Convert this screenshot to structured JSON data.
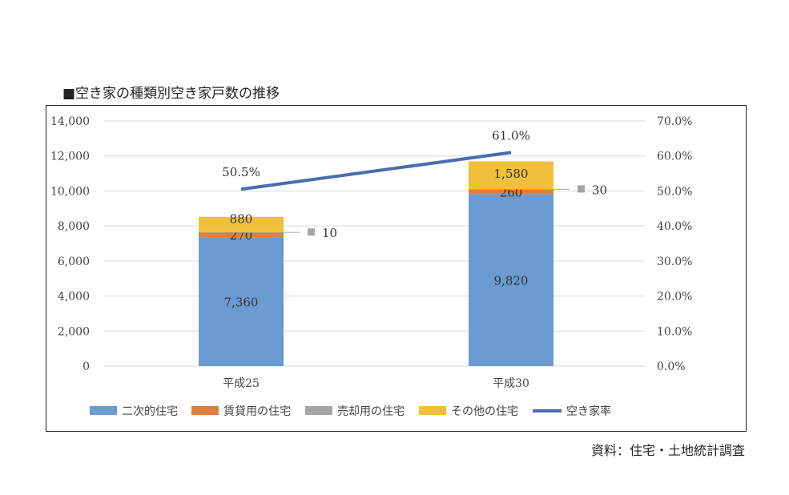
{
  "title": "■空き家の種類別空き家戸数の推移",
  "source": "資料：住宅・土地統計調査",
  "chart_data": {
    "type": "bar",
    "stacked": true,
    "categories": [
      "平成25",
      "平成30"
    ],
    "series": [
      {
        "name": "二次的住宅",
        "values": [
          7360,
          9820
        ],
        "labels": [
          "7,360",
          "9,820"
        ],
        "color": "#6a9bd1"
      },
      {
        "name": "賃貸用の住宅",
        "values": [
          270,
          260
        ],
        "labels": [
          "270",
          "260"
        ],
        "color": "#de7f3e"
      },
      {
        "name": "売却用の住宅",
        "values": [
          10,
          30
        ],
        "labels": [
          "10",
          "30"
        ],
        "color": "#a5a5a5"
      },
      {
        "name": "その他の住宅",
        "values": [
          880,
          1580
        ],
        "labels": [
          "880",
          "1,580"
        ],
        "color": "#f2bf3c"
      }
    ],
    "line": {
      "name": "空き家率",
      "values": [
        0.505,
        0.61
      ],
      "labels": [
        "50.5%",
        "61.0%"
      ],
      "color": "#4a6cb0",
      "axis": "right"
    },
    "ylim": [
      0,
      14000
    ],
    "yticks": [
      "0",
      "2,000",
      "4,000",
      "6,000",
      "8,000",
      "10,000",
      "12,000",
      "14,000"
    ],
    "y2lim": [
      0,
      0.7
    ],
    "y2ticks": [
      "0.0%",
      "10.0%",
      "20.0%",
      "30.0%",
      "40.0%",
      "50.0%",
      "60.0%",
      "70.0%"
    ],
    "grid": true,
    "legend": "bottom"
  }
}
